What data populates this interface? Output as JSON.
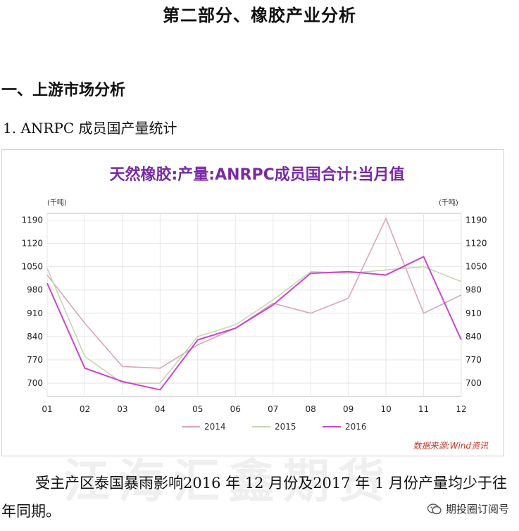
{
  "document": {
    "section_title": "第二部分、橡胶产业分析",
    "sub_heading": "一、上游市场分析",
    "item_heading": "1. ANRPC 成员国产量统计",
    "paragraph": "受主产区泰国暴雨影响2016 年 12 月份及2017 年 1 月份产量均少于往年同期。",
    "watermark": "江海汇鑫期货",
    "wechat_label": "期投圈订阅号",
    "wechat_icon": "wechat-icon"
  },
  "chart_data": {
    "type": "line",
    "title": "天然橡胶:产量:ANRPC成员国合计:当月值",
    "unit_left": "(千吨)",
    "unit_right": "(千吨)",
    "source": "数据来源:Wind资讯",
    "categories": [
      "01",
      "02",
      "03",
      "04",
      "05",
      "06",
      "07",
      "08",
      "09",
      "10",
      "11",
      "12"
    ],
    "yticks": [
      700,
      770,
      840,
      910,
      980,
      1050,
      1120,
      1190
    ],
    "ylim": [
      660,
      1210
    ],
    "grid": true,
    "legend_position": "bottom",
    "series": [
      {
        "name": "2014",
        "color": "#d9a6b5",
        "values": [
          1025,
          880,
          750,
          745,
          815,
          865,
          940,
          910,
          955,
          1195,
          910,
          965
        ]
      },
      {
        "name": "2015",
        "color": "#c8d4b4",
        "values": [
          1045,
          780,
          700,
          700,
          840,
          875,
          950,
          1035,
          1030,
          1040,
          1050,
          1005
        ]
      },
      {
        "name": "2016",
        "color": "#cc44cc",
        "values": [
          1000,
          745,
          705,
          680,
          830,
          865,
          935,
          1030,
          1035,
          1025,
          1080,
          830
        ]
      }
    ]
  }
}
